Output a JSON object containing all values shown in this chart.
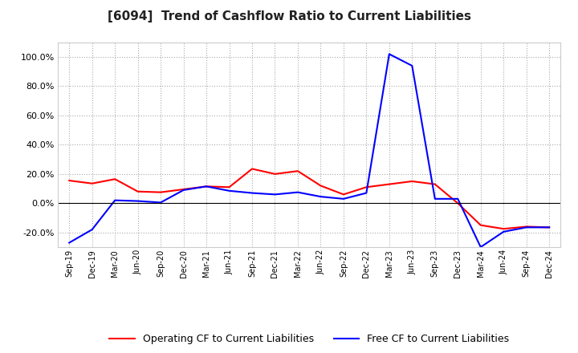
{
  "title": "[6094]  Trend of Cashflow Ratio to Current Liabilities",
  "x_labels": [
    "Sep-19",
    "Dec-19",
    "Mar-20",
    "Jun-20",
    "Sep-20",
    "Dec-20",
    "Mar-21",
    "Jun-21",
    "Sep-21",
    "Dec-21",
    "Mar-22",
    "Jun-22",
    "Sep-22",
    "Dec-22",
    "Mar-23",
    "Jun-23",
    "Sep-23",
    "Dec-23",
    "Mar-24",
    "Jun-24",
    "Sep-24",
    "Dec-24"
  ],
  "operating_cf": [
    15.5,
    13.5,
    16.5,
    8.0,
    7.5,
    9.5,
    11.5,
    11.0,
    23.5,
    20.0,
    22.0,
    12.0,
    6.0,
    11.0,
    13.0,
    15.0,
    13.0,
    0.0,
    -15.0,
    -17.5,
    -16.0,
    -16.5
  ],
  "free_cf": [
    -27.0,
    -18.0,
    2.0,
    1.5,
    0.5,
    9.0,
    11.5,
    8.5,
    7.0,
    6.0,
    7.5,
    4.5,
    3.0,
    7.0,
    102.0,
    94.0,
    3.0,
    3.0,
    -30.0,
    -19.5,
    -16.5,
    -16.5
  ],
  "operating_color": "#ff0000",
  "free_color": "#0000ff",
  "ylim": [
    -30,
    110
  ],
  "yticks": [
    -20.0,
    0.0,
    20.0,
    40.0,
    60.0,
    80.0,
    100.0
  ],
  "background_color": "#ffffff",
  "grid_color": "#aaaaaa",
  "legend_op": "Operating CF to Current Liabilities",
  "legend_free": "Free CF to Current Liabilities"
}
